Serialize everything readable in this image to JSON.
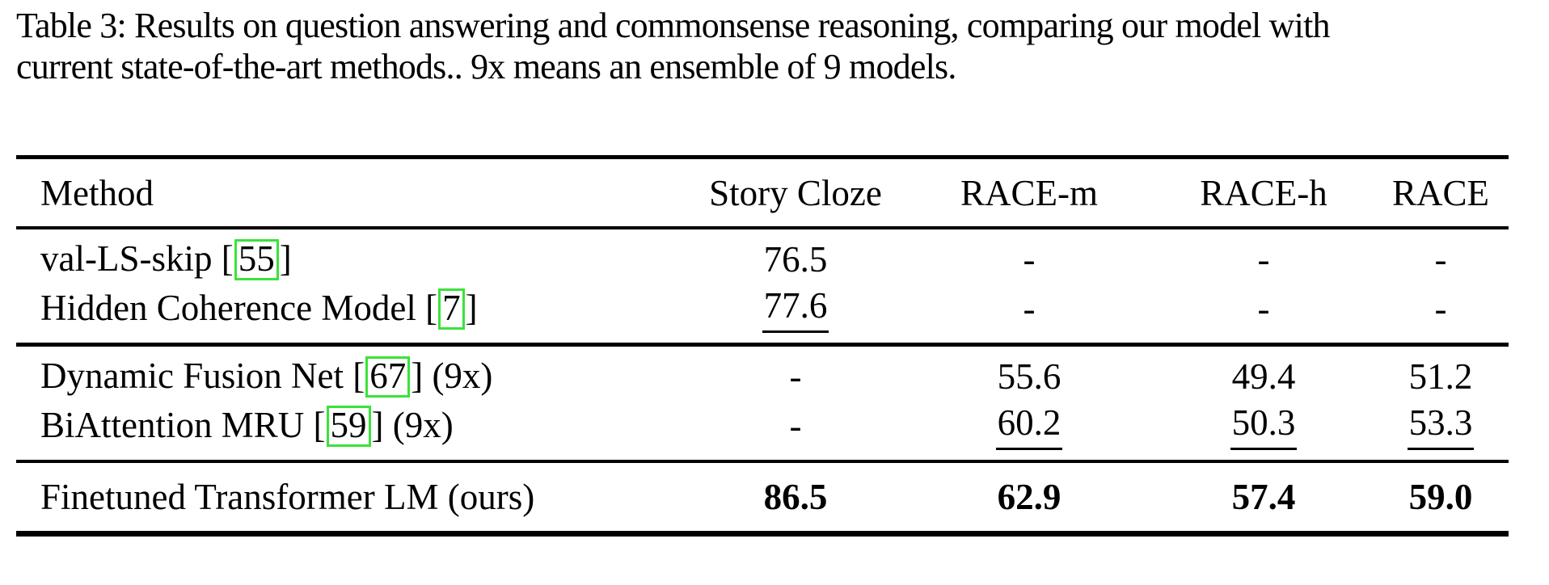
{
  "page": {
    "background_color": "#ffffff",
    "text_color": "#000000",
    "citation_box_color": "#3be23b"
  },
  "caption": {
    "line1": "Table 3: Results on question answering and commonsense reasoning, comparing our model with",
    "line2": "current state-of-the-art methods.. 9x means an ensemble of 9 models.",
    "full_text": "Table 3: Results on question answering and commonsense reasoning, comparing our model with current state-of-the-art methods.. 9x means an ensemble of 9 models."
  },
  "table": {
    "header": {
      "method": "Method",
      "columns": [
        "Story Cloze",
        "RACE-m",
        "RACE-h",
        "RACE"
      ]
    },
    "rows": [
      {
        "method_pre": "val-LS-skip [",
        "cite": "55",
        "method_post": "]",
        "values": [
          "76.5",
          "-",
          "-",
          "-"
        ],
        "underlined_values": []
      },
      {
        "method_pre": "Hidden Coherence Model [",
        "cite": "7",
        "method_post": "]",
        "values": [
          "77.6",
          "-",
          "-",
          "-"
        ],
        "underlined_values": [
          "77.6"
        ]
      },
      {
        "method_pre": "Dynamic Fusion Net [",
        "cite": "67",
        "method_post": "] (9x)",
        "values": [
          "-",
          "55.6",
          "49.4",
          "51.2"
        ],
        "underlined_values": []
      },
      {
        "method_pre": "BiAttention MRU [",
        "cite": "59",
        "method_post": "] (9x)",
        "values": [
          "-",
          "60.2",
          "50.3",
          "53.3"
        ],
        "underlined_values": [
          "60.2",
          "50.3",
          "53.3"
        ]
      },
      {
        "method": "Finetuned Transformer LM (ours)",
        "values": [
          "86.5",
          "62.9",
          "57.4",
          "59.0"
        ],
        "bold_values": true
      }
    ]
  }
}
